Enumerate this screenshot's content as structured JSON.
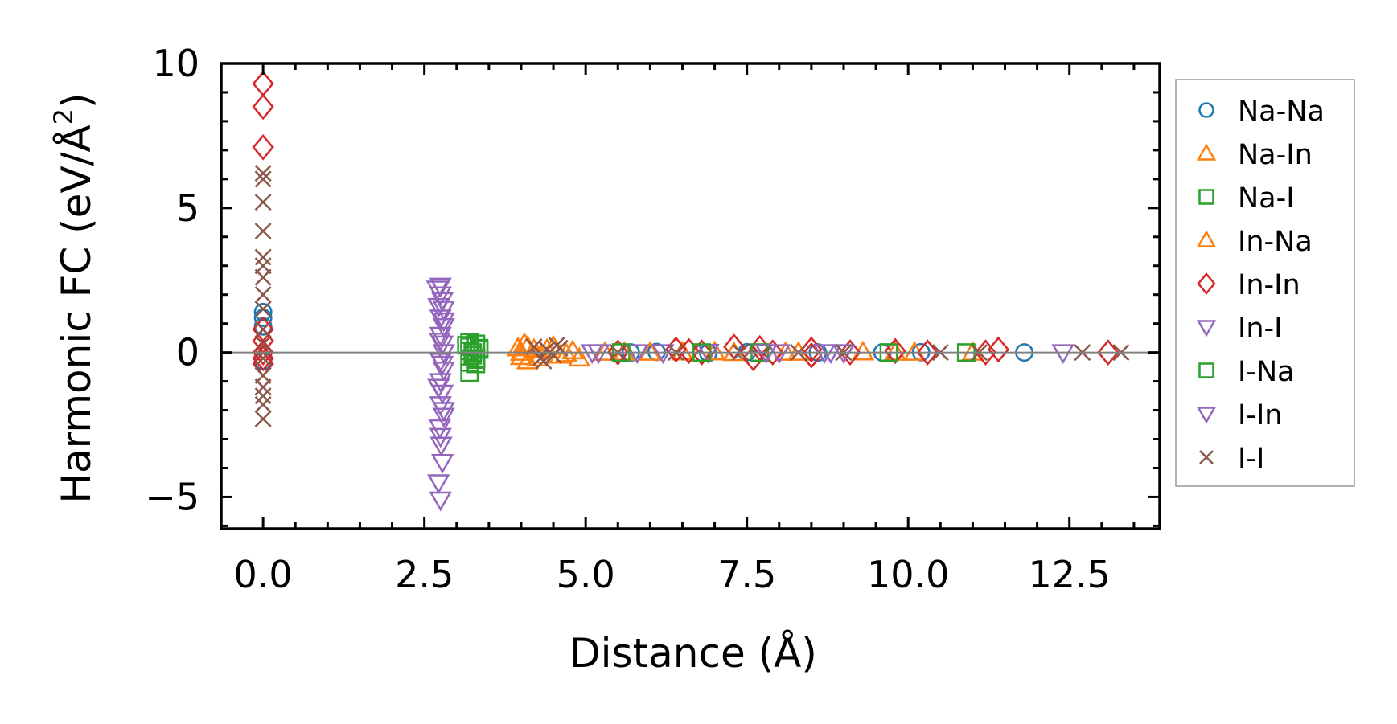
{
  "chart_data": {
    "type": "scatter",
    "title": "",
    "xlabel": "Distance (Å)",
    "ylabel_main": "Harmonic FC (eV/Å",
    "ylabel_sup": "2",
    "ylabel_close": ")",
    "xlim": [
      -0.65,
      13.9
    ],
    "ylim": [
      -6.1,
      10.0
    ],
    "xticks": [
      0.0,
      2.5,
      5.0,
      7.5,
      10.0,
      12.5
    ],
    "xtick_labels": [
      "0.0",
      "2.5",
      "5.0",
      "7.5",
      "10.0",
      "12.5"
    ],
    "yticks": [
      -5,
      0,
      5,
      10
    ],
    "ytick_labels": [
      "−5",
      "0",
      "5",
      "10"
    ],
    "zero_line": true,
    "grid": false,
    "legend_position": "outside-right",
    "series": [
      {
        "name": "Na-Na",
        "marker": "circle",
        "color": "#1f77b4",
        "x": [
          0,
          0,
          0,
          0,
          5.7,
          6.1,
          6.9,
          7.5,
          8.6,
          9.6,
          10.2,
          11.8
        ],
        "y": [
          1.4,
          1.2,
          0.9,
          -0.3,
          0.0,
          0.02,
          -0.02,
          0.01,
          0.0,
          0.0,
          0.01,
          0.0
        ]
      },
      {
        "name": "Na-In",
        "marker": "triangle-up",
        "color": "#ff7f0e",
        "x": [
          3.95,
          4.0,
          4.05,
          4.1,
          4.2,
          4.3,
          4.5,
          4.7,
          4.9,
          5.6,
          6.5,
          7.3,
          8.1,
          9.3,
          10.1,
          11.0
        ],
        "y": [
          0.15,
          -0.15,
          0.3,
          -0.3,
          0.1,
          -0.1,
          0.2,
          -0.05,
          -0.2,
          0.0,
          0.01,
          -0.01,
          0.0,
          0.01,
          0.0,
          0.0
        ]
      },
      {
        "name": "Na-I",
        "marker": "square",
        "color": "#2ca02c",
        "x": [
          3.2,
          3.2,
          3.2,
          3.25,
          3.3,
          3.3,
          3.35,
          3.2,
          3.3
        ],
        "y": [
          0.35,
          0.2,
          0.05,
          -0.1,
          -0.25,
          -0.4,
          0.1,
          -0.7,
          0.3
        ]
      },
      {
        "name": "In-Na",
        "marker": "triangle-up",
        "color": "#ff7f0e",
        "x": [
          4.0,
          4.1,
          4.25,
          4.4,
          4.6,
          4.8,
          5.3,
          6.0,
          7.0,
          8.3,
          9.8
        ],
        "y": [
          0.0,
          0.2,
          -0.2,
          0.1,
          -0.1,
          0.05,
          0.0,
          0.0,
          0.01,
          0.0,
          0.0
        ]
      },
      {
        "name": "In-In",
        "marker": "diamond",
        "color": "#d62728",
        "x": [
          0,
          0,
          0,
          0,
          0,
          0,
          0,
          0,
          5.5,
          6.4,
          6.6,
          6.8,
          7.3,
          7.6,
          7.7,
          7.9,
          8.5,
          8.5,
          9.1,
          9.8,
          10.3,
          11.2,
          11.4,
          13.1
        ],
        "y": [
          9.3,
          8.5,
          7.1,
          0.8,
          0.4,
          0.0,
          -0.2,
          -0.4,
          0.0,
          0.1,
          0.05,
          0.0,
          0.2,
          -0.2,
          0.15,
          0.0,
          0.1,
          -0.1,
          0.0,
          0.05,
          0.0,
          0.0,
          0.1,
          0.0
        ]
      },
      {
        "name": "In-I",
        "marker": "triangle-down",
        "color": "#9467bd",
        "x": [
          2.75,
          2.75,
          2.78,
          2.8,
          2.75,
          2.8,
          2.75,
          2.78,
          2.8,
          2.75,
          2.8,
          2.75,
          2.78,
          2.75,
          2.8,
          2.75,
          2.78,
          2.75,
          5.1,
          5.8,
          6.9,
          8.0,
          8.7,
          9.0,
          12.4
        ],
        "y": [
          2.3,
          2.0,
          1.8,
          1.5,
          1.2,
          0.9,
          0.6,
          0.3,
          0.0,
          -0.3,
          -0.6,
          -1.0,
          -1.4,
          -1.8,
          -2.2,
          -2.9,
          -3.8,
          -5.1,
          0.0,
          0.0,
          0.01,
          0.0,
          0.0,
          0.0,
          0.0
        ]
      },
      {
        "name": "I-Na",
        "marker": "square",
        "color": "#2ca02c",
        "x": [
          3.15,
          3.25,
          3.3,
          3.35,
          3.2,
          5.55,
          6.8,
          7.7,
          9.7,
          10.9
        ],
        "y": [
          0.25,
          0.0,
          -0.2,
          0.15,
          -0.35,
          0.0,
          0.0,
          0.0,
          0.0,
          0.0
        ]
      },
      {
        "name": "I-In",
        "marker": "triangle-down",
        "color": "#9467bd",
        "x": [
          2.7,
          2.72,
          2.8,
          2.74,
          2.78,
          2.72,
          2.8,
          2.74,
          2.76,
          2.72,
          5.2,
          6.2,
          7.8,
          8.8
        ],
        "y": [
          2.2,
          1.6,
          1.1,
          0.4,
          -0.4,
          -1.2,
          -2.0,
          -2.6,
          -3.2,
          -4.5,
          0.0,
          0.0,
          0.0,
          0.0
        ]
      },
      {
        "name": "I-I",
        "marker": "x",
        "color": "#8c564b",
        "x": [
          0,
          0,
          0,
          0,
          0,
          0,
          0,
          0,
          0,
          0,
          0,
          0,
          0,
          0,
          0,
          0,
          0,
          4.2,
          4.3,
          4.4,
          4.5,
          4.6,
          4.35,
          4.55,
          5.5,
          6.4,
          7.4,
          8.3,
          9.0,
          10.5,
          11.1,
          12.7,
          13.3
        ],
        "y": [
          6.2,
          6.0,
          5.2,
          4.2,
          3.3,
          3.0,
          2.6,
          2.0,
          1.5,
          0.8,
          0.3,
          -0.2,
          -0.8,
          -1.2,
          -1.5,
          -1.8,
          -2.3,
          0.2,
          -0.2,
          0.1,
          -0.1,
          0.15,
          -0.3,
          0.25,
          0.0,
          0.0,
          0.0,
          0.0,
          0.0,
          0.0,
          0.0,
          0.0,
          0.0
        ]
      }
    ]
  }
}
